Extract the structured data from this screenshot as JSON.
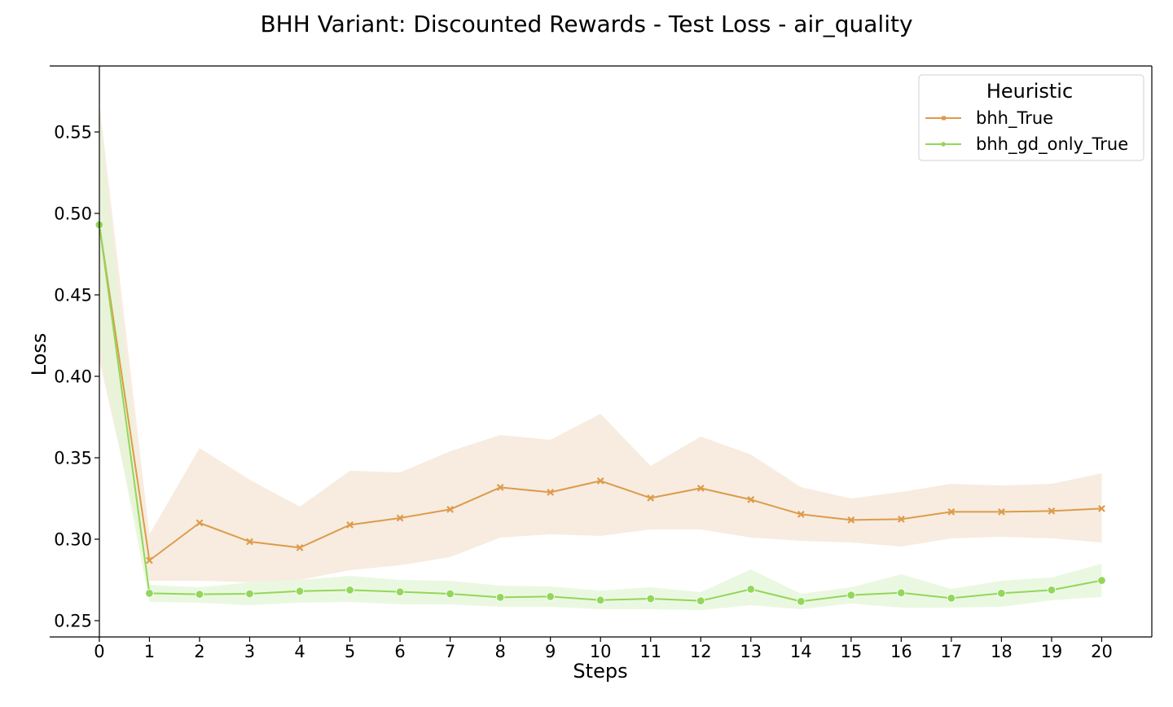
{
  "chart_data": {
    "type": "line",
    "title": "BHH Variant: Discounted Rewards - Test Loss - air_quality",
    "xlabel": "Steps",
    "ylabel": "Loss",
    "x": [
      0,
      1,
      2,
      3,
      4,
      5,
      6,
      7,
      8,
      9,
      10,
      11,
      12,
      13,
      14,
      15,
      16,
      17,
      18,
      19,
      20
    ],
    "xticks": [
      0,
      1,
      2,
      3,
      4,
      5,
      6,
      7,
      8,
      9,
      10,
      11,
      12,
      13,
      14,
      15,
      16,
      17,
      18,
      19,
      20
    ],
    "yticks": [
      0.25,
      0.3,
      0.35,
      0.4,
      0.45,
      0.5,
      0.55
    ],
    "ytick_labels": [
      "0.25",
      "0.30",
      "0.35",
      "0.40",
      "0.45",
      "0.50",
      "0.55"
    ],
    "xlim": [
      -0.99,
      21.0
    ],
    "ylim": [
      0.24,
      0.5905
    ],
    "grid": false,
    "legend": {
      "title": "Heuristic",
      "position": "top-right"
    },
    "series": [
      {
        "name": "bhh_True",
        "color": "#dd9b4c",
        "band_color": "#f6eadc",
        "marker": "x",
        "values": [
          0.493,
          0.287,
          0.31,
          0.2985,
          0.2948,
          0.3088,
          0.313,
          0.3183,
          0.3318,
          0.3288,
          0.3358,
          0.3253,
          0.3313,
          0.3243,
          0.3153,
          0.3118,
          0.3123,
          0.3168,
          0.3168,
          0.3173,
          0.3188
        ],
        "lower": [
          0.41,
          0.2745,
          0.2745,
          0.2735,
          0.275,
          0.281,
          0.284,
          0.289,
          0.301,
          0.303,
          0.302,
          0.306,
          0.306,
          0.301,
          0.299,
          0.298,
          0.2955,
          0.3005,
          0.3015,
          0.3005,
          0.298
        ],
        "upper": [
          0.568,
          0.303,
          0.356,
          0.3365,
          0.32,
          0.342,
          0.341,
          0.354,
          0.364,
          0.361,
          0.377,
          0.345,
          0.363,
          0.352,
          0.332,
          0.325,
          0.329,
          0.334,
          0.333,
          0.334,
          0.3405
        ]
      },
      {
        "name": "bhh_gd_only_True",
        "color": "#92d75a",
        "band_color": "#e4f5d7",
        "marker": "o",
        "values": [
          0.493,
          0.2668,
          0.2662,
          0.2665,
          0.2681,
          0.2688,
          0.2677,
          0.2665,
          0.2643,
          0.2648,
          0.2626,
          0.2635,
          0.2622,
          0.2693,
          0.2618,
          0.2657,
          0.2671,
          0.2638,
          0.2668,
          0.2688,
          0.2747
        ],
        "lower": [
          0.42,
          0.2615,
          0.261,
          0.2595,
          0.261,
          0.2615,
          0.26,
          0.26,
          0.2585,
          0.2585,
          0.257,
          0.257,
          0.2565,
          0.2595,
          0.257,
          0.2605,
          0.258,
          0.258,
          0.2585,
          0.2625,
          0.2645
        ],
        "upper": [
          0.56,
          0.272,
          0.2705,
          0.2735,
          0.275,
          0.2775,
          0.275,
          0.2745,
          0.2715,
          0.271,
          0.2685,
          0.2705,
          0.2675,
          0.2815,
          0.2665,
          0.2705,
          0.2785,
          0.2695,
          0.2745,
          0.2765,
          0.285
        ]
      }
    ]
  }
}
